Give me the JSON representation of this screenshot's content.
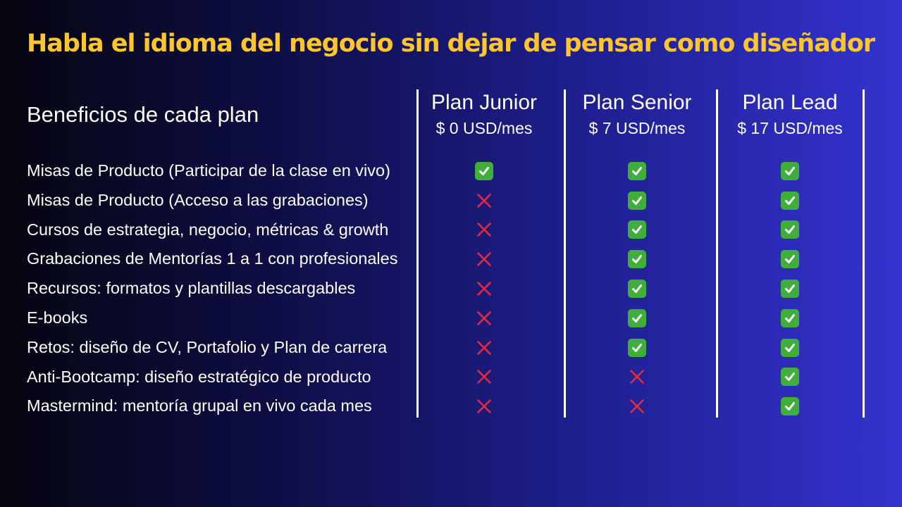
{
  "headline": "Habla el idioma del negocio sin dejar de pensar como diseñador",
  "benefits_heading": "Beneficios de cada plan",
  "benefits": [
    "Misas de Producto (Participar de la clase en vivo)",
    "Misas de Producto (Acceso a las grabaciones)",
    "Cursos de estrategia, negocio, métricas & growth",
    "Grabaciones de Mentorías 1 a 1 con profesionales",
    "Recursos: formatos y plantillas descargables",
    "E-books",
    "Retos: diseño de CV, Portafolio y Plan de carrera",
    "Anti-Bootcamp: diseño estratégico de producto",
    "Mastermind: mentoría grupal en vivo cada mes"
  ],
  "plans": [
    {
      "name": "Plan Junior",
      "price": "$ 0 USD/mes",
      "includes": [
        true,
        false,
        false,
        false,
        false,
        false,
        false,
        false,
        false
      ]
    },
    {
      "name": "Plan Senior",
      "price": "$ 7 USD/mes",
      "includes": [
        true,
        true,
        true,
        true,
        true,
        true,
        true,
        false,
        false
      ]
    },
    {
      "name": "Plan Lead",
      "price": "$ 17 USD/mes",
      "includes": [
        true,
        true,
        true,
        true,
        true,
        true,
        true,
        true,
        true
      ]
    }
  ],
  "colors": {
    "headline": "#ffc629",
    "check_background": "#3fae3a",
    "cross": "#e8283c",
    "text": "#ffffff"
  },
  "icons": {
    "included": "check-mark-icon",
    "excluded": "cross-mark-icon"
  }
}
